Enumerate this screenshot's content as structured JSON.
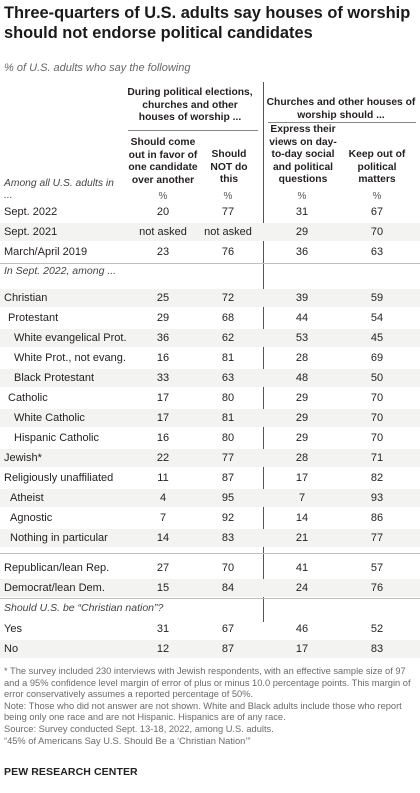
{
  "title": "Three-quarters of U.S. adults say houses of worship should not endorse political candidates",
  "subtitle": "% of U.S. adults who say the following",
  "group_left": "During political elections, churches and other houses of worship ...",
  "group_right": "Churches and other houses of worship should ...",
  "col_headers": [
    "Should come out in favor of one candidate over another",
    "Should NOT do this",
    "Express their views on day-to-day social and political questions",
    "Keep out of political matters"
  ],
  "pct_symbol": "%",
  "row_label_head": "Among all U.S. adults in ...",
  "section2": "In Sept. 2022, among ...",
  "section3": "Should U.S. be “Christian nation”?",
  "footnote": [
    "* The survey included 230 interviews with Jewish respondents, with an effective sample size of 97 and a 95% confidence level margin of error of plus or minus 10.0 percentage points. This margin of error conservatively assumes a reported percentage of 50%.",
    "Note: Those who did not answer are not shown. White and Black adults include those who report being only one race and are not Hispanic. Hispanics are of any race.",
    "Source: Survey conducted Sept. 13-18, 2022, among U.S. adults.",
    "“45% of Americans Say U.S. Should Be a ‘Christian Nation’”"
  ],
  "source_name": "PEW RESEARCH CENTER",
  "chart_data": {
    "type": "table",
    "columns": [
      "Should come out in favor of one candidate over another",
      "Should NOT do this",
      "Express their views on day-to-day social and political questions",
      "Keep out of political matters"
    ],
    "rows": [
      {
        "label": "Sept. 2022",
        "values": [
          "20",
          "77",
          "31",
          "67"
        ]
      },
      {
        "label": "Sept. 2021",
        "values": [
          "not asked",
          "not asked",
          "29",
          "70"
        ]
      },
      {
        "label": "March/April 2019",
        "values": [
          "23",
          "76",
          "36",
          "63"
        ]
      },
      {
        "label": "Christian",
        "values": [
          "25",
          "72",
          "39",
          "59"
        ]
      },
      {
        "label": "Protestant",
        "values": [
          "29",
          "68",
          "44",
          "54"
        ]
      },
      {
        "label": "White evangelical Prot.",
        "values": [
          "36",
          "62",
          "53",
          "45"
        ]
      },
      {
        "label": "White Prot., not evang.",
        "values": [
          "16",
          "81",
          "28",
          "69"
        ]
      },
      {
        "label": "Black Protestant",
        "values": [
          "33",
          "63",
          "48",
          "50"
        ]
      },
      {
        "label": "Catholic",
        "values": [
          "17",
          "80",
          "29",
          "70"
        ]
      },
      {
        "label": "White Catholic",
        "values": [
          "17",
          "81",
          "29",
          "70"
        ]
      },
      {
        "label": "Hispanic Catholic",
        "values": [
          "16",
          "80",
          "29",
          "70"
        ]
      },
      {
        "label": "Jewish*",
        "values": [
          "22",
          "77",
          "28",
          "71"
        ]
      },
      {
        "label": "Religiously unaffiliated",
        "values": [
          "11",
          "87",
          "17",
          "82"
        ]
      },
      {
        "label": "Atheist",
        "values": [
          "4",
          "95",
          "7",
          "93"
        ]
      },
      {
        "label": "Agnostic",
        "values": [
          "7",
          "92",
          "14",
          "86"
        ]
      },
      {
        "label": "Nothing in particular",
        "values": [
          "14",
          "83",
          "21",
          "77"
        ]
      },
      {
        "label": "Republican/lean Rep.",
        "values": [
          "27",
          "70",
          "41",
          "57"
        ]
      },
      {
        "label": "Democrat/lean Dem.",
        "values": [
          "15",
          "84",
          "24",
          "76"
        ]
      },
      {
        "label": "Yes",
        "values": [
          "31",
          "67",
          "46",
          "52"
        ]
      },
      {
        "label": "No",
        "values": [
          "12",
          "87",
          "17",
          "83"
        ]
      }
    ]
  }
}
